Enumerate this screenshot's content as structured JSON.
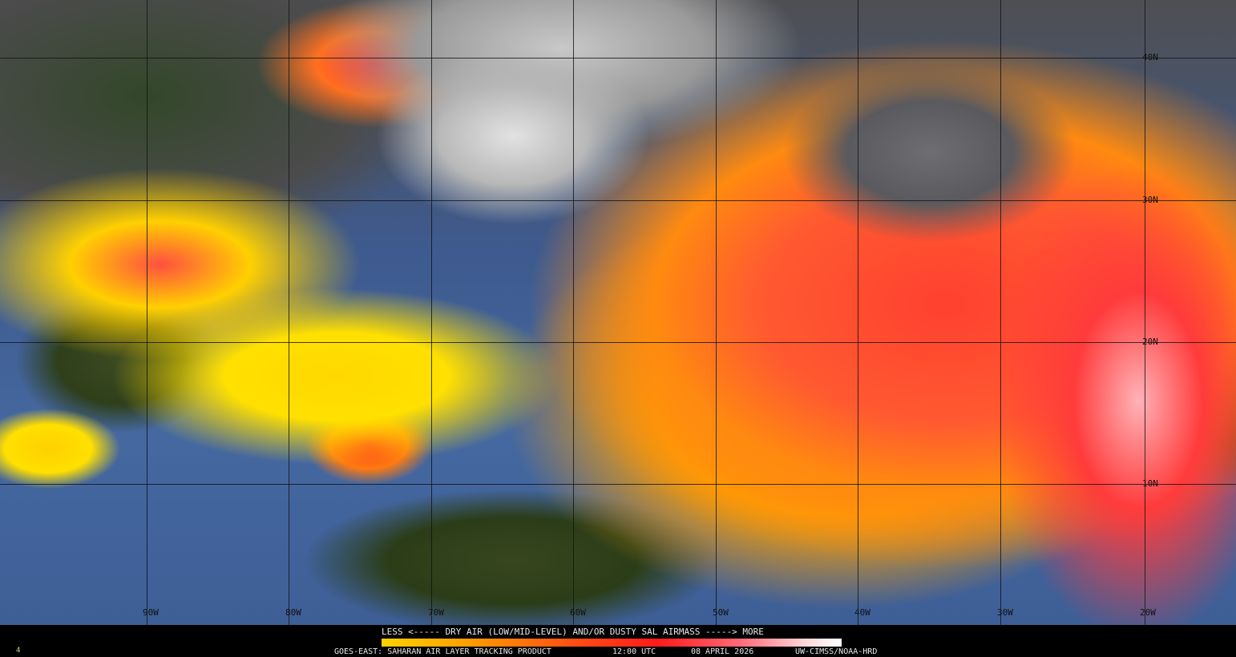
{
  "map": {
    "longitude_labels": [
      "90W",
      "80W",
      "70W",
      "60W",
      "50W",
      "40W",
      "30W",
      "20W"
    ],
    "latitude_labels": [
      "40N",
      "30N",
      "20N",
      "10N"
    ]
  },
  "legend": {
    "caption": "LESS <----- DRY AIR (LOW/MID-LEVEL) AND/OR DUSTY SAL AIRMASS -----> MORE",
    "colors": [
      "#ffd200",
      "#ffa000",
      "#ff5a10",
      "#ff1a1a",
      "#ff6a78",
      "#ffd6d8",
      "#ffffff"
    ]
  },
  "footer": {
    "product": "GOES-EAST: SAHARAN AIR LAYER TRACKING PRODUCT",
    "time": "12:00 UTC",
    "date": "08 APRIL 2026",
    "credit": "UW-CIMSS/NOAA-HRD",
    "corner_mark": "4"
  }
}
